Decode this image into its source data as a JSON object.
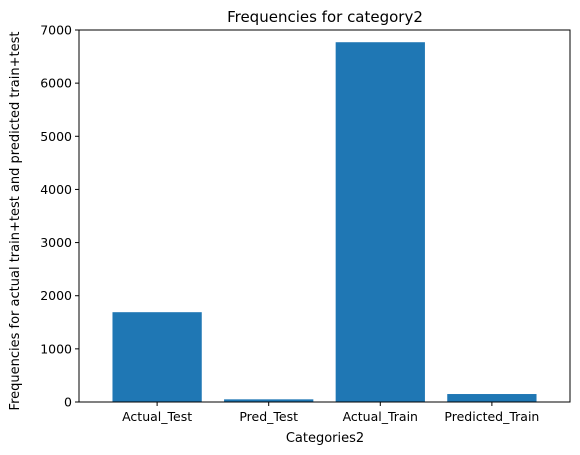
{
  "chart_data": {
    "type": "bar",
    "title": "Frequencies for category2",
    "xlabel": "Categories2",
    "ylabel": "Frequencies for actual train+test and predicted train+test",
    "categories": [
      "Actual_Test",
      "Pred_Test",
      "Actual_Train",
      "Predicted_Train"
    ],
    "values": [
      1690,
      50,
      6770,
      150
    ],
    "ylim": [
      0,
      7000
    ],
    "yticks": [
      0,
      1000,
      2000,
      3000,
      4000,
      5000,
      6000,
      7000
    ],
    "grid": false,
    "legend": "none",
    "bar_color": "#1f77b4"
  }
}
